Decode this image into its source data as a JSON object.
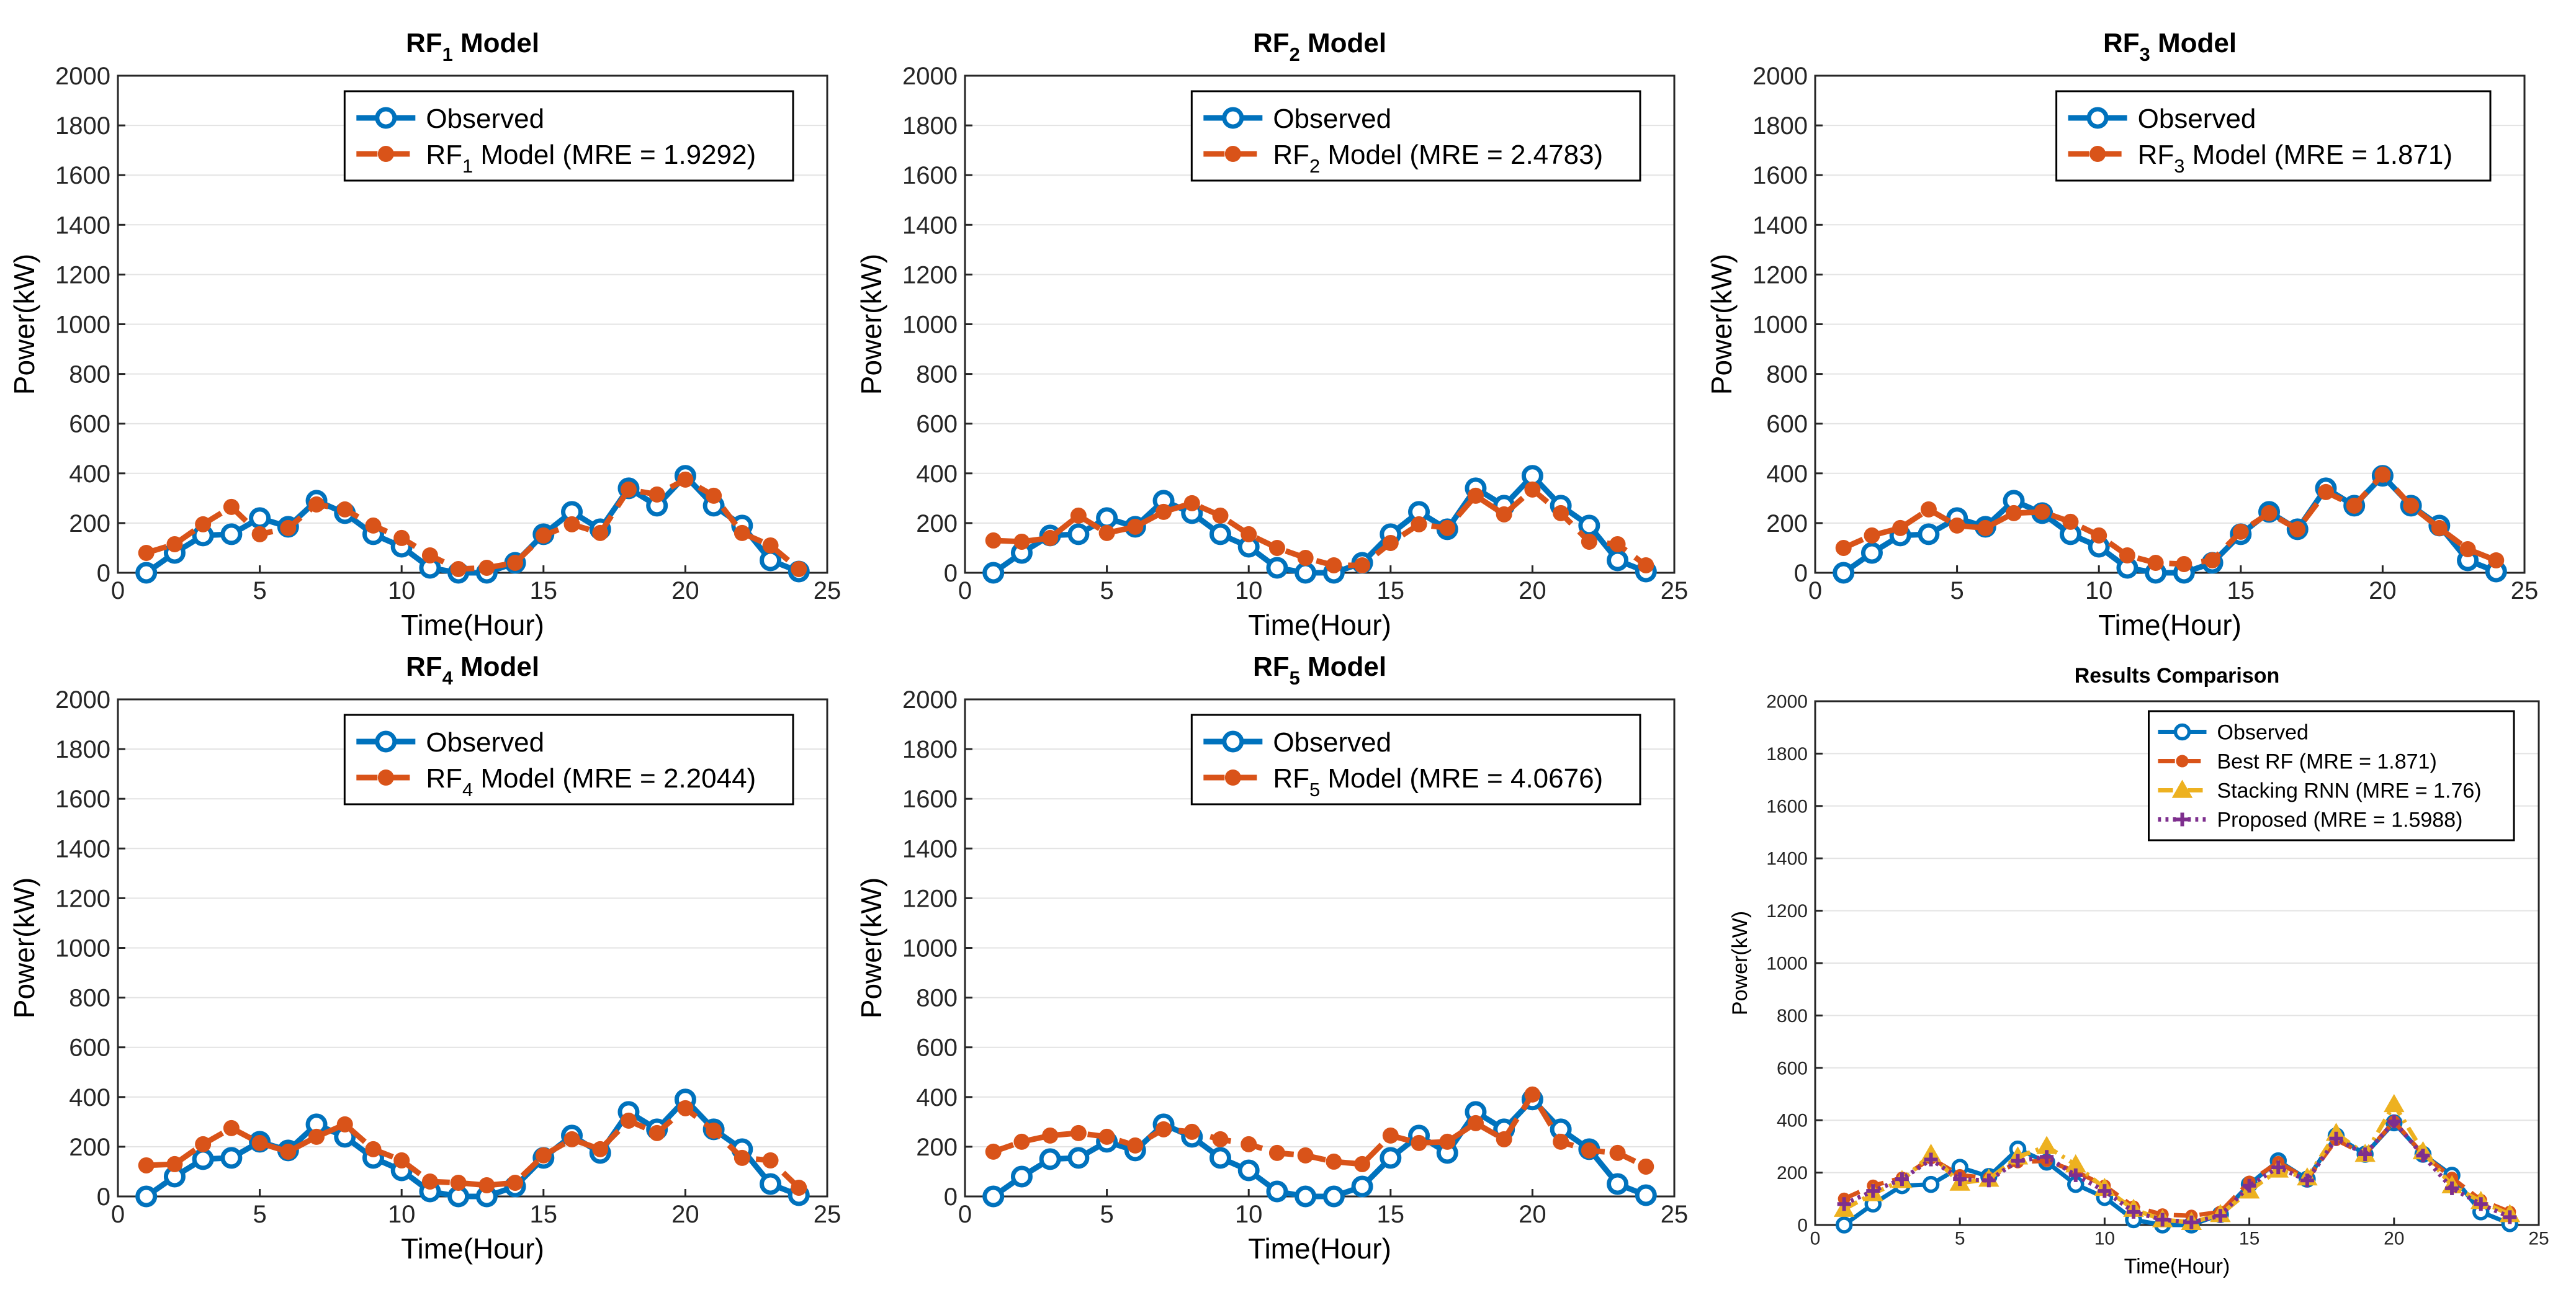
{
  "colors": {
    "observed": "#0072BD",
    "model": "#D95319",
    "stacking": "#EDB120",
    "proposed": "#7E2F8E",
    "grid": "#e3e3e3",
    "axis": "#262626"
  },
  "chart_data": [
    {
      "type": "line",
      "title_main": "RF",
      "title_sub": "1",
      "title_rest": " Model",
      "xlabel": "Time(Hour)",
      "ylabel": "Power(kW)",
      "xlim": [
        0,
        25
      ],
      "ylim": [
        0,
        2000
      ],
      "xticks": [
        0,
        5,
        10,
        15,
        20,
        25
      ],
      "yticks": [
        0,
        200,
        400,
        600,
        800,
        1000,
        1200,
        1400,
        1600,
        1800,
        2000
      ],
      "x": [
        1,
        2,
        3,
        4,
        5,
        6,
        7,
        8,
        9,
        10,
        11,
        12,
        13,
        14,
        15,
        16,
        17,
        18,
        19,
        20,
        21,
        22,
        23,
        24
      ],
      "legend_position": "top-right",
      "series": [
        {
          "name": "Observed",
          "legend_main": "Observed",
          "legend_sub": "",
          "legend_rest": "",
          "color": "#0072BD",
          "style": "solid",
          "marker": "circle-open",
          "values": [
            0,
            80,
            150,
            155,
            220,
            185,
            290,
            240,
            155,
            105,
            20,
            0,
            0,
            40,
            155,
            245,
            175,
            340,
            270,
            390,
            270,
            190,
            50,
            5
          ]
        },
        {
          "name": "RF1 Model",
          "legend_main": "RF",
          "legend_sub": "1",
          "legend_rest": " Model (MRE = 1.9292)",
          "color": "#D95319",
          "style": "dash",
          "marker": "dot",
          "values": [
            80,
            115,
            195,
            265,
            155,
            180,
            275,
            255,
            190,
            140,
            70,
            15,
            20,
            40,
            150,
            195,
            160,
            335,
            315,
            375,
            310,
            160,
            110,
            15
          ]
        }
      ]
    },
    {
      "type": "line",
      "title_main": "RF",
      "title_sub": "2",
      "title_rest": " Model",
      "xlabel": "Time(Hour)",
      "ylabel": "Power(kW)",
      "xlim": [
        0,
        25
      ],
      "ylim": [
        0,
        2000
      ],
      "xticks": [
        0,
        5,
        10,
        15,
        20,
        25
      ],
      "yticks": [
        0,
        200,
        400,
        600,
        800,
        1000,
        1200,
        1400,
        1600,
        1800,
        2000
      ],
      "x": [
        1,
        2,
        3,
        4,
        5,
        6,
        7,
        8,
        9,
        10,
        11,
        12,
        13,
        14,
        15,
        16,
        17,
        18,
        19,
        20,
        21,
        22,
        23,
        24
      ],
      "legend_position": "top-right",
      "series": [
        {
          "name": "Observed",
          "legend_main": "Observed",
          "legend_sub": "",
          "legend_rest": "",
          "color": "#0072BD",
          "style": "solid",
          "marker": "circle-open",
          "values": [
            0,
            80,
            150,
            155,
            220,
            185,
            290,
            240,
            155,
            105,
            20,
            0,
            0,
            40,
            155,
            245,
            175,
            340,
            270,
            390,
            270,
            190,
            50,
            5
          ]
        },
        {
          "name": "RF2 Model",
          "legend_main": "RF",
          "legend_sub": "2",
          "legend_rest": " Model (MRE = 2.4783)",
          "color": "#D95319",
          "style": "dash",
          "marker": "dot",
          "values": [
            130,
            125,
            140,
            230,
            160,
            185,
            245,
            280,
            230,
            155,
            100,
            60,
            30,
            30,
            120,
            195,
            180,
            310,
            235,
            335,
            240,
            125,
            115,
            30
          ]
        }
      ]
    },
    {
      "type": "line",
      "title_main": "RF",
      "title_sub": "3",
      "title_rest": " Model",
      "xlabel": "Time(Hour)",
      "ylabel": "Power(kW)",
      "xlim": [
        0,
        25
      ],
      "ylim": [
        0,
        2000
      ],
      "xticks": [
        0,
        5,
        10,
        15,
        20,
        25
      ],
      "yticks": [
        0,
        200,
        400,
        600,
        800,
        1000,
        1200,
        1400,
        1600,
        1800,
        2000
      ],
      "x": [
        1,
        2,
        3,
        4,
        5,
        6,
        7,
        8,
        9,
        10,
        11,
        12,
        13,
        14,
        15,
        16,
        17,
        18,
        19,
        20,
        21,
        22,
        23,
        24
      ],
      "legend_position": "top-right",
      "series": [
        {
          "name": "Observed",
          "legend_main": "Observed",
          "legend_sub": "",
          "legend_rest": "",
          "color": "#0072BD",
          "style": "solid",
          "marker": "circle-open",
          "values": [
            0,
            80,
            150,
            155,
            220,
            185,
            290,
            240,
            155,
            105,
            20,
            0,
            0,
            40,
            155,
            245,
            175,
            340,
            270,
            390,
            270,
            190,
            50,
            5
          ]
        },
        {
          "name": "RF3 Model",
          "legend_main": "RF",
          "legend_sub": "3",
          "legend_rest": " Model (MRE = 1.871)",
          "color": "#D95319",
          "style": "dash",
          "marker": "dot",
          "values": [
            100,
            150,
            180,
            255,
            190,
            180,
            240,
            245,
            205,
            150,
            70,
            40,
            35,
            50,
            165,
            240,
            175,
            325,
            270,
            395,
            270,
            180,
            95,
            50
          ]
        }
      ]
    },
    {
      "type": "line",
      "title_main": "RF",
      "title_sub": "4",
      "title_rest": " Model",
      "xlabel": "Time(Hour)",
      "ylabel": "Power(kW)",
      "xlim": [
        0,
        25
      ],
      "ylim": [
        0,
        2000
      ],
      "xticks": [
        0,
        5,
        10,
        15,
        20,
        25
      ],
      "yticks": [
        0,
        200,
        400,
        600,
        800,
        1000,
        1200,
        1400,
        1600,
        1800,
        2000
      ],
      "x": [
        1,
        2,
        3,
        4,
        5,
        6,
        7,
        8,
        9,
        10,
        11,
        12,
        13,
        14,
        15,
        16,
        17,
        18,
        19,
        20,
        21,
        22,
        23,
        24
      ],
      "legend_position": "top-right",
      "series": [
        {
          "name": "Observed",
          "legend_main": "Observed",
          "legend_sub": "",
          "legend_rest": "",
          "color": "#0072BD",
          "style": "solid",
          "marker": "circle-open",
          "values": [
            0,
            80,
            150,
            155,
            220,
            185,
            290,
            240,
            155,
            105,
            20,
            0,
            0,
            40,
            155,
            245,
            175,
            340,
            270,
            390,
            270,
            190,
            50,
            5
          ]
        },
        {
          "name": "RF4 Model",
          "legend_main": "RF",
          "legend_sub": "4",
          "legend_rest": " Model (MRE = 2.2044)",
          "color": "#D95319",
          "style": "dash",
          "marker": "dot",
          "values": [
            125,
            130,
            210,
            275,
            215,
            180,
            240,
            290,
            190,
            145,
            60,
            55,
            45,
            55,
            165,
            230,
            190,
            305,
            255,
            355,
            265,
            155,
            145,
            35
          ]
        }
      ]
    },
    {
      "type": "line",
      "title_main": "RF",
      "title_sub": "5",
      "title_rest": " Model",
      "xlabel": "Time(Hour)",
      "ylabel": "Power(kW)",
      "xlim": [
        0,
        25
      ],
      "ylim": [
        0,
        2000
      ],
      "xticks": [
        0,
        5,
        10,
        15,
        20,
        25
      ],
      "yticks": [
        0,
        200,
        400,
        600,
        800,
        1000,
        1200,
        1400,
        1600,
        1800,
        2000
      ],
      "x": [
        1,
        2,
        3,
        4,
        5,
        6,
        7,
        8,
        9,
        10,
        11,
        12,
        13,
        14,
        15,
        16,
        17,
        18,
        19,
        20,
        21,
        22,
        23,
        24
      ],
      "legend_position": "top-right",
      "series": [
        {
          "name": "Observed",
          "legend_main": "Observed",
          "legend_sub": "",
          "legend_rest": "",
          "color": "#0072BD",
          "style": "solid",
          "marker": "circle-open",
          "values": [
            0,
            80,
            150,
            155,
            220,
            185,
            290,
            240,
            155,
            105,
            20,
            0,
            0,
            40,
            155,
            245,
            175,
            340,
            270,
            390,
            270,
            190,
            50,
            5
          ]
        },
        {
          "name": "RF5 Model",
          "legend_main": "RF",
          "legend_sub": "5",
          "legend_rest": " Model (MRE = 4.0676)",
          "color": "#D95319",
          "style": "dash",
          "marker": "dot",
          "values": [
            180,
            220,
            245,
            255,
            240,
            205,
            270,
            260,
            230,
            210,
            175,
            165,
            140,
            130,
            245,
            215,
            220,
            295,
            230,
            410,
            220,
            185,
            175,
            120
          ]
        }
      ]
    },
    {
      "type": "line",
      "title_main": "Results Comparison",
      "title_sub": "",
      "title_rest": "",
      "xlabel": "Time(Hour)",
      "ylabel": "Power(kW)",
      "xlim": [
        0,
        25
      ],
      "ylim": [
        0,
        2000
      ],
      "xticks": [
        0,
        5,
        10,
        15,
        20,
        25
      ],
      "yticks": [
        0,
        200,
        400,
        600,
        800,
        1000,
        1200,
        1400,
        1600,
        1800,
        2000
      ],
      "x": [
        1,
        2,
        3,
        4,
        5,
        6,
        7,
        8,
        9,
        10,
        11,
        12,
        13,
        14,
        15,
        16,
        17,
        18,
        19,
        20,
        21,
        22,
        23,
        24
      ],
      "legend_position": "top-right",
      "series": [
        {
          "name": "Observed",
          "legend_main": "Observed",
          "legend_sub": "",
          "legend_rest": "",
          "color": "#0072BD",
          "style": "solid",
          "marker": "circle-open",
          "values": [
            0,
            80,
            150,
            155,
            220,
            185,
            290,
            240,
            155,
            105,
            20,
            0,
            0,
            40,
            155,
            245,
            175,
            340,
            270,
            390,
            270,
            190,
            50,
            5
          ]
        },
        {
          "name": "Best RF",
          "legend_main": "Best RF (MRE = 1.871)",
          "legend_sub": "",
          "legend_rest": "",
          "color": "#D95319",
          "style": "dash",
          "marker": "dot",
          "values": [
            100,
            150,
            180,
            255,
            190,
            180,
            240,
            245,
            205,
            150,
            70,
            40,
            35,
            50,
            165,
            240,
            175,
            325,
            270,
            395,
            270,
            180,
            95,
            50
          ]
        },
        {
          "name": "Stacking RNN",
          "legend_main": "Stacking RNN (MRE = 1.76)",
          "legend_sub": "",
          "legend_rest": "",
          "color": "#EDB120",
          "style": "dashdot",
          "marker": "triangle",
          "values": [
            60,
            120,
            170,
            270,
            160,
            175,
            260,
            300,
            230,
            140,
            60,
            20,
            10,
            40,
            130,
            210,
            180,
            350,
            270,
            460,
            280,
            150,
            90,
            40
          ]
        },
        {
          "name": "Proposed",
          "legend_main": "Proposed (MRE = 1.5988)",
          "legend_sub": "",
          "legend_rest": "",
          "color": "#7E2F8E",
          "style": "dot",
          "marker": "plus",
          "values": [
            80,
            130,
            175,
            250,
            175,
            170,
            245,
            260,
            190,
            130,
            50,
            20,
            10,
            35,
            150,
            220,
            170,
            330,
            270,
            395,
            265,
            140,
            80,
            30
          ]
        }
      ]
    }
  ]
}
